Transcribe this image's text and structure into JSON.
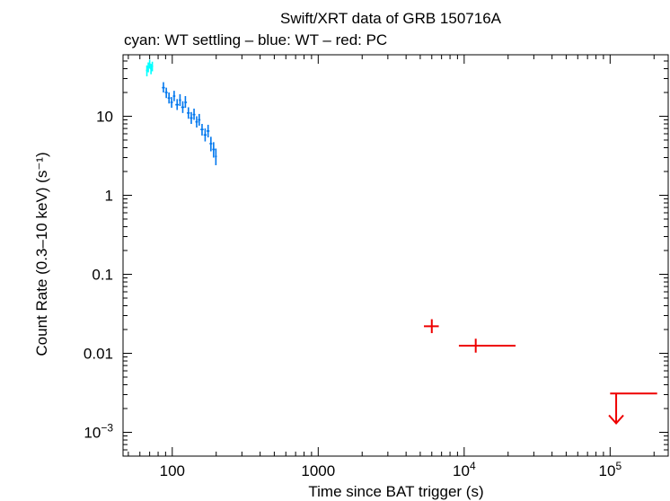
{
  "chart_data": {
    "type": "scatter",
    "title": "Swift/XRT data of GRB 150716A",
    "subtitle": "cyan: WT settling – blue: WT – red: PC",
    "xlabel": "Time since BAT trigger (s)",
    "ylabel": "Count Rate (0.3–10 keV) (s⁻¹)",
    "x_scale": "log",
    "y_scale": "log",
    "xlim": [
      46,
      250000
    ],
    "ylim": [
      0.0005,
      60
    ],
    "x_ticks": [
      {
        "value": 100,
        "label": "100",
        "sup": ""
      },
      {
        "value": 1000,
        "label": "1000",
        "sup": ""
      },
      {
        "value": 10000,
        "label": "10",
        "sup": "4"
      },
      {
        "value": 100000,
        "label": "10",
        "sup": "5"
      }
    ],
    "y_ticks": [
      {
        "value": 10,
        "label": "10",
        "sup": ""
      },
      {
        "value": 1,
        "label": "1",
        "sup": ""
      },
      {
        "value": 0.1,
        "label": "0.1",
        "sup": ""
      },
      {
        "value": 0.01,
        "label": "0.01",
        "sup": ""
      },
      {
        "value": 0.001,
        "label": "10",
        "sup": "−3"
      }
    ],
    "grid": false,
    "series": [
      {
        "name": "WT settling",
        "color": "#00ffff",
        "points": [
          {
            "x": 67,
            "y": 38,
            "xlo": 66,
            "xhi": 68,
            "ylo": 32,
            "yhi": 44
          },
          {
            "x": 68.5,
            "y": 42,
            "xlo": 67.5,
            "xhi": 69.5,
            "ylo": 36,
            "yhi": 48
          },
          {
            "x": 70,
            "y": 46,
            "xlo": 69,
            "xhi": 71,
            "ylo": 40,
            "yhi": 52
          },
          {
            "x": 71.5,
            "y": 40,
            "xlo": 70.5,
            "xhi": 72.5,
            "ylo": 34,
            "yhi": 46
          },
          {
            "x": 73,
            "y": 43,
            "xlo": 72,
            "xhi": 74,
            "ylo": 37,
            "yhi": 49
          }
        ]
      },
      {
        "name": "WT",
        "color": "#0077ee",
        "points": [
          {
            "x": 87,
            "y": 23,
            "xlo": 85,
            "xhi": 89,
            "ylo": 20,
            "yhi": 27
          },
          {
            "x": 91,
            "y": 20,
            "xlo": 89,
            "xhi": 93,
            "ylo": 17,
            "yhi": 23
          },
          {
            "x": 95,
            "y": 17,
            "xlo": 93,
            "xhi": 97,
            "ylo": 14.5,
            "yhi": 20
          },
          {
            "x": 99,
            "y": 15,
            "xlo": 97,
            "xhi": 101,
            "ylo": 12.8,
            "yhi": 17.5
          },
          {
            "x": 103,
            "y": 18,
            "xlo": 101,
            "xhi": 105,
            "ylo": 15.5,
            "yhi": 21
          },
          {
            "x": 108,
            "y": 14,
            "xlo": 105,
            "xhi": 111,
            "ylo": 12,
            "yhi": 16.5
          },
          {
            "x": 113,
            "y": 16,
            "xlo": 111,
            "xhi": 115,
            "ylo": 13.5,
            "yhi": 19
          },
          {
            "x": 118,
            "y": 13,
            "xlo": 115,
            "xhi": 121,
            "ylo": 11,
            "yhi": 15.5
          },
          {
            "x": 123,
            "y": 15,
            "xlo": 121,
            "xhi": 126,
            "ylo": 12.8,
            "yhi": 18
          },
          {
            "x": 129,
            "y": 11,
            "xlo": 126,
            "xhi": 132,
            "ylo": 9.3,
            "yhi": 13
          },
          {
            "x": 135,
            "y": 9.5,
            "xlo": 132,
            "xhi": 138,
            "ylo": 8,
            "yhi": 11.3
          },
          {
            "x": 141,
            "y": 10.5,
            "xlo": 138,
            "xhi": 144,
            "ylo": 9,
            "yhi": 12.5
          },
          {
            "x": 147,
            "y": 8.5,
            "xlo": 144,
            "xhi": 150,
            "ylo": 7.2,
            "yhi": 10
          },
          {
            "x": 153,
            "y": 9,
            "xlo": 150,
            "xhi": 156,
            "ylo": 7.6,
            "yhi": 10.7
          },
          {
            "x": 160,
            "y": 6.8,
            "xlo": 156,
            "xhi": 164,
            "ylo": 5.7,
            "yhi": 8
          },
          {
            "x": 168,
            "y": 5.8,
            "xlo": 164,
            "xhi": 172,
            "ylo": 4.8,
            "yhi": 7
          },
          {
            "x": 176,
            "y": 6.5,
            "xlo": 172,
            "xhi": 180,
            "ylo": 5.4,
            "yhi": 7.8
          },
          {
            "x": 184,
            "y": 4.5,
            "xlo": 180,
            "xhi": 188,
            "ylo": 3.6,
            "yhi": 5.5
          },
          {
            "x": 192,
            "y": 3.8,
            "xlo": 188,
            "xhi": 196,
            "ylo": 3,
            "yhi": 4.7
          },
          {
            "x": 199,
            "y": 3.1,
            "xlo": 196,
            "xhi": 202,
            "ylo": 2.4,
            "yhi": 3.9
          }
        ]
      },
      {
        "name": "PC",
        "color": "#ee0000",
        "points": [
          {
            "x": 6000,
            "y": 0.022,
            "xlo": 5300,
            "xhi": 6700,
            "ylo": 0.018,
            "yhi": 0.027
          },
          {
            "x": 12000,
            "y": 0.0125,
            "xlo": 9200,
            "xhi": 22500,
            "ylo": 0.0102,
            "yhi": 0.0153
          }
        ],
        "upper_limits": [
          {
            "x": 110000,
            "y": 0.0031,
            "xlo": 100000,
            "xhi": 210000,
            "arrow_to": 0.0013
          }
        ]
      }
    ]
  }
}
